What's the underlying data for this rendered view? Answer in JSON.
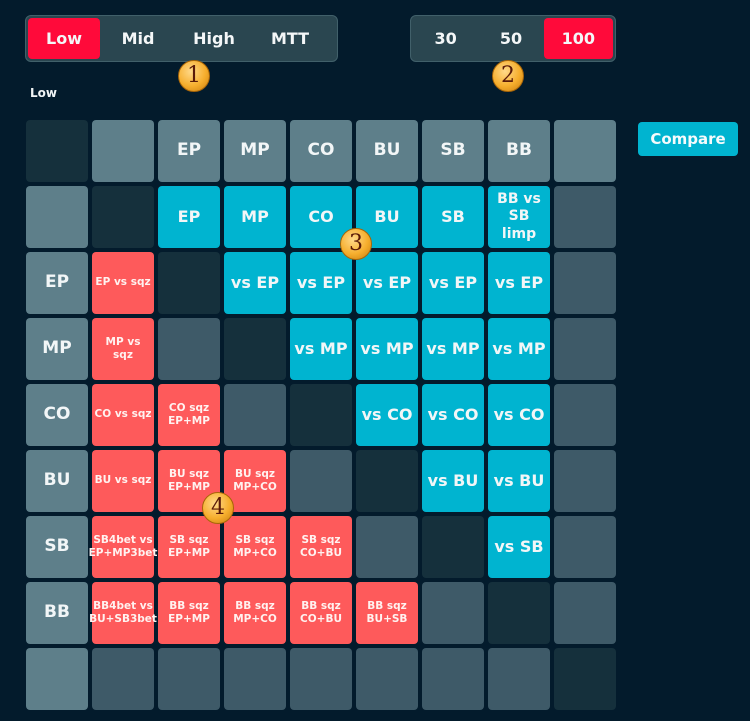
{
  "level_selector": {
    "options": [
      "Low",
      "Mid",
      "High",
      "MTT"
    ],
    "active": "Low"
  },
  "stack_selector": {
    "options": [
      "30",
      "50",
      "100"
    ],
    "active": "100"
  },
  "current_level_label": "Low",
  "compare_button": "Compare",
  "badges": [
    "1",
    "2",
    "3",
    "4"
  ],
  "colors": {
    "active_red": "#ff0a3a",
    "cyan": "#00b4d0",
    "cell_red": "#fe5a5b",
    "header": "#5e7f8a",
    "background": "#031b2c"
  },
  "grid": {
    "rows": [
      [
        {
          "t": "dark",
          "v": ""
        },
        {
          "t": "header",
          "v": ""
        },
        {
          "t": "header",
          "v": "EP"
        },
        {
          "t": "header",
          "v": "MP"
        },
        {
          "t": "header",
          "v": "CO"
        },
        {
          "t": "header",
          "v": "BU"
        },
        {
          "t": "header",
          "v": "SB"
        },
        {
          "t": "header",
          "v": "BB"
        },
        {
          "t": "header",
          "v": ""
        }
      ],
      [
        {
          "t": "header",
          "v": ""
        },
        {
          "t": "dark",
          "v": ""
        },
        {
          "t": "cyan",
          "v": "EP"
        },
        {
          "t": "cyan",
          "v": "MP"
        },
        {
          "t": "cyan",
          "v": "CO"
        },
        {
          "t": "cyan",
          "v": "BU"
        },
        {
          "t": "cyan",
          "v": "SB"
        },
        {
          "t": "cyan small",
          "v": "BB vs SB limp"
        },
        {
          "t": "mid",
          "v": ""
        }
      ],
      [
        {
          "t": "header",
          "v": "EP"
        },
        {
          "t": "red",
          "v": "EP vs sqz"
        },
        {
          "t": "dark",
          "v": ""
        },
        {
          "t": "cyan",
          "v": "vs EP"
        },
        {
          "t": "cyan",
          "v": "vs EP"
        },
        {
          "t": "cyan",
          "v": "vs EP"
        },
        {
          "t": "cyan",
          "v": "vs EP"
        },
        {
          "t": "cyan",
          "v": "vs EP"
        },
        {
          "t": "mid",
          "v": ""
        }
      ],
      [
        {
          "t": "header",
          "v": "MP"
        },
        {
          "t": "red",
          "v": "MP vs sqz"
        },
        {
          "t": "mid",
          "v": ""
        },
        {
          "t": "dark",
          "v": ""
        },
        {
          "t": "cyan",
          "v": "vs MP"
        },
        {
          "t": "cyan",
          "v": "vs MP"
        },
        {
          "t": "cyan",
          "v": "vs MP"
        },
        {
          "t": "cyan",
          "v": "vs MP"
        },
        {
          "t": "mid",
          "v": ""
        }
      ],
      [
        {
          "t": "header",
          "v": "CO"
        },
        {
          "t": "red",
          "v": "CO vs sqz"
        },
        {
          "t": "red",
          "v": "CO sqz EP+MP"
        },
        {
          "t": "mid",
          "v": ""
        },
        {
          "t": "dark",
          "v": ""
        },
        {
          "t": "cyan",
          "v": "vs CO"
        },
        {
          "t": "cyan",
          "v": "vs CO"
        },
        {
          "t": "cyan",
          "v": "vs CO"
        },
        {
          "t": "mid",
          "v": ""
        }
      ],
      [
        {
          "t": "header",
          "v": "BU"
        },
        {
          "t": "red",
          "v": "BU vs sqz"
        },
        {
          "t": "red",
          "v": "BU sqz EP+MP"
        },
        {
          "t": "red",
          "v": "BU sqz MP+CO"
        },
        {
          "t": "mid",
          "v": ""
        },
        {
          "t": "dark",
          "v": ""
        },
        {
          "t": "cyan",
          "v": "vs BU"
        },
        {
          "t": "cyan",
          "v": "vs BU"
        },
        {
          "t": "mid",
          "v": ""
        }
      ],
      [
        {
          "t": "header",
          "v": "SB"
        },
        {
          "t": "red",
          "v": "SB4bet vs EP+MP3bet"
        },
        {
          "t": "red",
          "v": "SB sqz EP+MP"
        },
        {
          "t": "red",
          "v": "SB sqz MP+CO"
        },
        {
          "t": "red",
          "v": "SB sqz CO+BU"
        },
        {
          "t": "mid",
          "v": ""
        },
        {
          "t": "dark",
          "v": ""
        },
        {
          "t": "cyan",
          "v": "vs SB"
        },
        {
          "t": "mid",
          "v": ""
        }
      ],
      [
        {
          "t": "header",
          "v": "BB"
        },
        {
          "t": "red",
          "v": "BB4bet vs BU+SB3bet"
        },
        {
          "t": "red",
          "v": "BB sqz EP+MP"
        },
        {
          "t": "red",
          "v": "BB sqz MP+CO"
        },
        {
          "t": "red",
          "v": "BB sqz CO+BU"
        },
        {
          "t": "red",
          "v": "BB sqz BU+SB"
        },
        {
          "t": "mid",
          "v": ""
        },
        {
          "t": "dark",
          "v": ""
        },
        {
          "t": "mid",
          "v": ""
        }
      ],
      [
        {
          "t": "header",
          "v": ""
        },
        {
          "t": "mid",
          "v": ""
        },
        {
          "t": "mid",
          "v": ""
        },
        {
          "t": "mid",
          "v": ""
        },
        {
          "t": "mid",
          "v": ""
        },
        {
          "t": "mid",
          "v": ""
        },
        {
          "t": "mid",
          "v": ""
        },
        {
          "t": "mid",
          "v": ""
        },
        {
          "t": "dark",
          "v": ""
        }
      ]
    ]
  }
}
